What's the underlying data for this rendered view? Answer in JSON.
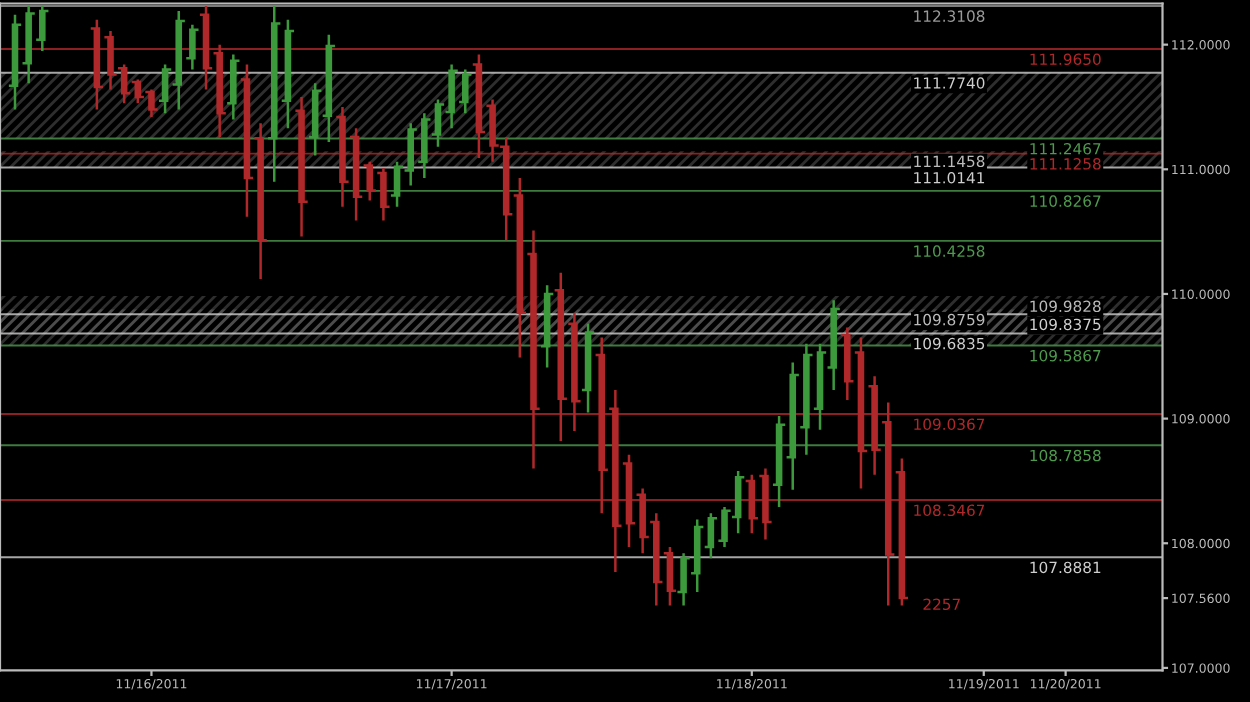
{
  "chart_data": {
    "type": "candlestick",
    "categories": [
      null,
      null,
      null,
      null,
      null,
      null,
      null,
      null,
      null,
      null,
      "11/16/2011",
      null,
      null,
      null,
      null,
      null,
      null,
      null,
      null,
      null,
      null,
      null,
      null,
      null,
      null,
      null,
      null,
      null,
      null,
      null,
      null,
      null,
      "11/17/2011",
      null,
      null,
      null,
      null,
      null,
      null,
      null,
      null,
      null,
      null,
      null,
      null,
      null,
      null,
      null,
      null,
      null,
      null,
      null,
      null,
      null,
      "11/18/2011",
      null,
      null,
      null,
      null,
      null,
      null,
      null,
      null,
      null,
      null,
      null,
      null,
      null,
      null,
      null,
      null,
      "11/19/2011",
      null,
      null,
      null,
      null,
      null,
      "11/20/2011",
      null,
      null,
      null,
      null,
      null,
      null,
      null
    ],
    "ohlc": [
      [
        111.67,
        112.24,
        111.48,
        112.16
      ],
      [
        111.85,
        112.31,
        111.69,
        112.25
      ],
      [
        112.04,
        112.31,
        111.95,
        112.27
      ],
      null,
      null,
      null,
      [
        112.13,
        112.2,
        111.48,
        111.66
      ],
      [
        112.06,
        112.11,
        111.64,
        111.76
      ],
      [
        111.81,
        111.84,
        111.53,
        111.61
      ],
      [
        111.7,
        111.72,
        111.53,
        111.58
      ],
      [
        111.62,
        111.64,
        111.42,
        111.48
      ],
      [
        111.55,
        111.84,
        111.45,
        111.8
      ],
      [
        111.68,
        112.27,
        111.48,
        112.19
      ],
      [
        111.89,
        112.16,
        111.8,
        112.12
      ],
      [
        112.24,
        112.31,
        111.64,
        111.81
      ],
      [
        111.93,
        112.0,
        111.26,
        111.45
      ],
      [
        111.53,
        111.92,
        111.4,
        111.87
      ],
      [
        111.72,
        111.84,
        110.62,
        110.93
      ],
      [
        111.25,
        111.37,
        110.12,
        110.43
      ],
      [
        111.25,
        112.31,
        110.9,
        112.17
      ],
      [
        111.55,
        112.2,
        111.33,
        112.11
      ],
      [
        111.47,
        111.58,
        110.46,
        110.74
      ],
      [
        111.26,
        111.69,
        111.11,
        111.63
      ],
      [
        111.43,
        112.08,
        111.22,
        111.99
      ],
      [
        111.42,
        111.5,
        110.7,
        110.9
      ],
      [
        111.26,
        111.33,
        110.59,
        110.78
      ],
      [
        111.03,
        111.06,
        110.75,
        110.83
      ],
      [
        110.97,
        111.01,
        110.59,
        110.7
      ],
      [
        110.79,
        111.06,
        110.7,
        111.02
      ],
      [
        110.99,
        111.37,
        110.87,
        111.32
      ],
      [
        111.06,
        111.45,
        110.93,
        111.4
      ],
      [
        111.28,
        111.56,
        111.18,
        111.52
      ],
      [
        111.46,
        111.84,
        111.33,
        111.79
      ],
      [
        111.54,
        111.8,
        111.45,
        111.76
      ],
      [
        111.84,
        111.92,
        111.09,
        111.3
      ],
      [
        111.51,
        111.56,
        111.06,
        111.19
      ],
      [
        111.18,
        111.26,
        110.43,
        110.64
      ],
      [
        110.79,
        110.93,
        109.49,
        109.85
      ],
      [
        110.32,
        110.51,
        108.6,
        109.08
      ],
      [
        109.58,
        110.07,
        109.41,
        110.0
      ],
      [
        110.03,
        110.17,
        108.82,
        109.16
      ],
      [
        109.76,
        109.85,
        108.9,
        109.14
      ],
      [
        109.23,
        109.76,
        109.05,
        109.69
      ],
      [
        109.51,
        109.65,
        108.24,
        108.59
      ],
      [
        109.08,
        109.23,
        107.77,
        108.14
      ],
      [
        108.64,
        108.71,
        107.97,
        108.16
      ],
      [
        108.39,
        108.44,
        107.92,
        108.05
      ],
      [
        108.17,
        108.24,
        107.5,
        107.69
      ],
      [
        107.92,
        107.97,
        107.5,
        107.62
      ],
      [
        107.61,
        107.92,
        107.5,
        107.88
      ],
      [
        107.76,
        108.19,
        107.61,
        108.13
      ],
      [
        107.97,
        108.24,
        107.88,
        108.2
      ],
      [
        108.02,
        108.29,
        107.97,
        108.26
      ],
      [
        108.21,
        108.58,
        108.08,
        108.53
      ],
      [
        108.5,
        108.55,
        108.08,
        108.2
      ],
      [
        108.54,
        108.6,
        108.03,
        108.17
      ],
      [
        108.47,
        109.02,
        108.29,
        108.95
      ],
      [
        108.69,
        109.45,
        108.43,
        109.35
      ],
      [
        108.93,
        109.6,
        108.71,
        109.51
      ],
      [
        109.08,
        109.6,
        108.91,
        109.53
      ],
      [
        109.41,
        109.95,
        109.23,
        109.88
      ],
      [
        109.67,
        109.73,
        109.15,
        109.3
      ],
      [
        109.53,
        109.65,
        108.44,
        108.74
      ],
      [
        109.26,
        109.34,
        108.55,
        108.75
      ],
      [
        108.97,
        109.13,
        107.5,
        107.91
      ],
      [
        108.57,
        108.68,
        107.5,
        107.56
      ],
      null,
      null,
      null,
      null,
      null,
      null,
      null,
      null,
      null,
      null,
      null,
      null,
      null,
      null,
      null,
      null,
      null,
      null,
      null
    ],
    "colors": [
      "#3c9a3c",
      "#3c9a3c",
      "#3c9a3c",
      null,
      null,
      null,
      "#b0282a",
      "#b0282a",
      "#b0282a",
      "#b0282a",
      "#b0282a",
      "#3c9a3c",
      "#3c9a3c",
      "#3c9a3c",
      "#b0282a",
      "#b0282a",
      "#3c9a3c",
      "#b0282a",
      "#b0282a",
      "#3c9a3c",
      "#3c9a3c",
      "#b0282a",
      "#3c9a3c",
      "#3c9a3c",
      "#b0282a",
      "#b0282a",
      "#b0282a",
      "#b0282a",
      "#3c9a3c",
      "#3c9a3c",
      "#3c9a3c",
      "#3c9a3c",
      "#3c9a3c",
      "#3c9a3c",
      "#b0282a",
      "#b0282a",
      "#b0282a",
      "#b0282a",
      "#b0282a",
      "#3c9a3c",
      "#b0282a",
      "#b0282a",
      "#3c9a3c",
      "#b0282a",
      "#b0282a",
      "#b0282a",
      "#b0282a",
      "#b0282a",
      "#b0282a",
      "#3c9a3c",
      "#3c9a3c",
      "#3c9a3c",
      "#3c9a3c",
      "#3c9a3c",
      "#b0282a",
      "#b0282a",
      "#3c9a3c",
      "#3c9a3c",
      "#3c9a3c",
      "#3c9a3c",
      "#3c9a3c",
      "#b0282a",
      "#b0282a",
      "#b0282a",
      "#b0282a",
      "#b0282a",
      null,
      null,
      null,
      null,
      null,
      null,
      null,
      null,
      null,
      null,
      null,
      null,
      null,
      null,
      null,
      null,
      null,
      null,
      null
    ],
    "ylim": [
      106.98,
      112.33
    ],
    "yticks": [
      {
        "value": 107,
        "label": "107.0000"
      },
      {
        "value": 107.56,
        "label": "107.5600"
      },
      {
        "value": 108,
        "label": "108.0000"
      },
      {
        "value": 109,
        "label": "109.0000"
      },
      {
        "value": 110,
        "label": "110.0000"
      },
      {
        "value": 111,
        "label": "111.0000"
      },
      {
        "value": 112,
        "label": "112.0000"
      }
    ],
    "ref_lines": [
      {
        "axis": "y",
        "value": 112.3108,
        "label": "112.3108",
        "color": "#9a9a9a"
      },
      {
        "axis": "y",
        "value": 111.965,
        "label": "111.9650",
        "color": "#b0282a"
      },
      {
        "axis": "y",
        "value": 111.774,
        "label": "111.7740",
        "color": "#cfcfcf"
      },
      {
        "axis": "y",
        "value": 111.2467,
        "label": "111.2467",
        "color": "#4f9a4f"
      },
      {
        "axis": "y",
        "value": 111.1258,
        "label": "111.1258",
        "color": "#b0282a"
      },
      {
        "axis": "y",
        "value": 111.0141,
        "label": "111.0141",
        "color": "#cfcfcf"
      },
      {
        "axis": "y",
        "value": 110.8267,
        "label": "110.8267",
        "color": "#4f9a4f"
      },
      {
        "axis": "y",
        "value": 110.4258,
        "label": "110.4258",
        "color": "#4f9a4f"
      },
      {
        "axis": "y",
        "value": 109.8375,
        "label": "109.8375",
        "color": "#cfcfcf"
      },
      {
        "axis": "y",
        "value": 109.6835,
        "label": "109.6835",
        "color": "#cfcfcf"
      },
      {
        "axis": "y",
        "value": 109.5867,
        "label": "109.5867",
        "color": "#4f9a4f"
      },
      {
        "axis": "y",
        "value": 109.0367,
        "label": "109.0367",
        "color": "#b0282a"
      },
      {
        "axis": "y",
        "value": 108.7858,
        "label": "108.7858",
        "color": "#4f9a4f"
      },
      {
        "axis": "y",
        "value": 108.3467,
        "label": "108.3467",
        "color": "#b0282a"
      },
      {
        "axis": "y",
        "value": 107.8881,
        "label": "107.8881",
        "color": "#cfcfcf"
      }
    ],
    "bands": [
      {
        "axis": "y",
        "from": 111.0141,
        "to": 111.1458,
        "label": "111.1458",
        "color": "#808080"
      },
      {
        "axis": "y",
        "from": 111.2467,
        "to": 111.774,
        "color": "#808080"
      },
      {
        "axis": "y",
        "from": 109.6835,
        "to": 109.9828,
        "label": "109.9828",
        "color": "#808080"
      },
      {
        "axis": "y",
        "from": 109.5867,
        "to": 109.8759,
        "label": "109.8759",
        "color": "#808080"
      }
    ],
    "annotations": [
      "2257"
    ]
  }
}
